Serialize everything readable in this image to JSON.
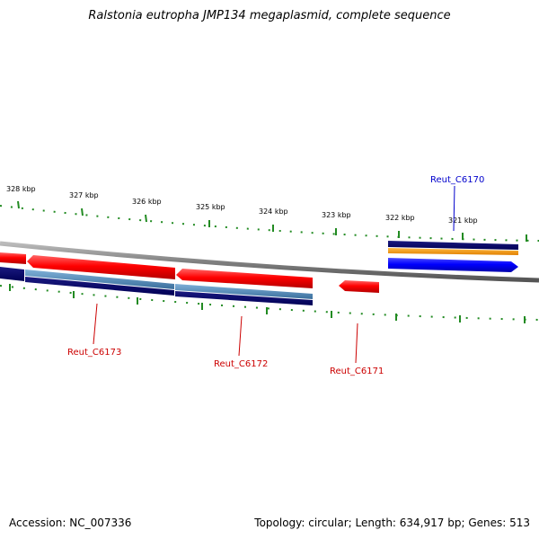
{
  "title": "Ralstonia eutropha JMP134 megaplasmid, complete sequence",
  "footer": {
    "accession": "Accession: NC_007336",
    "summary": "Topology: circular; Length: 634,917 bp; Genes: 513"
  },
  "ticks": [
    "328 kbp",
    "327 kbp",
    "326 kbp",
    "325 kbp",
    "324 kbp",
    "323 kbp",
    "322 kbp",
    "321 kbp"
  ],
  "genes": [
    {
      "name": "Reut_C6173",
      "color": "#cc0000"
    },
    {
      "name": "Reut_C6172",
      "color": "#cc0000"
    },
    {
      "name": "Reut_C6171",
      "color": "#cc0000"
    },
    {
      "name": "Reut_C6170",
      "color": "#0000cc"
    }
  ],
  "colors": {
    "backbone": "#808080",
    "tick_marks": "#228b22",
    "cds_red": "#ff0000",
    "cds_blue": "#0000ff",
    "cds_navy": "#000066",
    "cds_steel": "#4a86b8",
    "cds_orange": "#ff9900"
  }
}
